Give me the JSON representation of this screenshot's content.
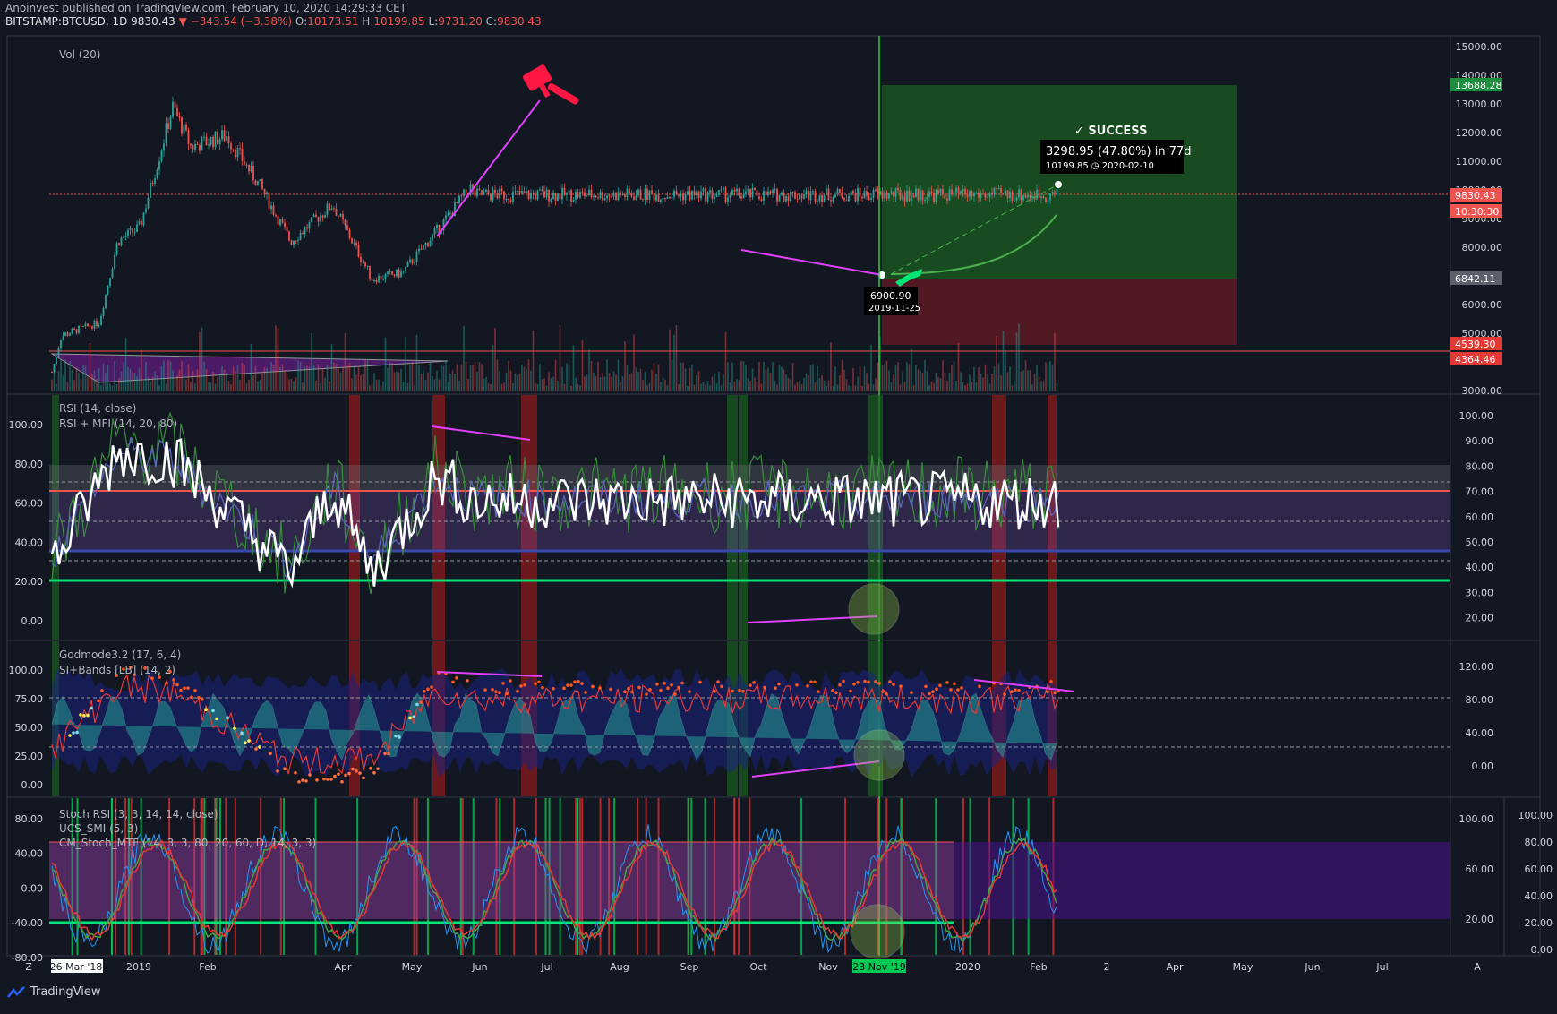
{
  "header": {
    "publisher_line": "Anoinvest published on TradingView.com, February 10, 2020 14:29:33 CET",
    "symbol": "BITSTAMP:BTCUSD, 1D",
    "last": "9830.43",
    "change": "−343.54 (−3.38%)",
    "o_label": "O:",
    "o_value": "10173.51",
    "h_label": "H:",
    "h_value": "10199.85",
    "l_label": "L:",
    "l_value": "9731.20",
    "c_label": "C:",
    "c_value": "9830.43"
  },
  "panes": {
    "price_title": "Vol (20)",
    "rsi_title1": "RSI (14, close)",
    "rsi_title2": "RSI + MFI (14, 20, 80)",
    "god_title1": "Godmode3.2 (17, 6, 4)",
    "god_title2": "SI+Bands [LB] (14, 2)",
    "stoch_title1": "Stoch RSI (3, 3, 14, 14, close)",
    "stoch_title2": "UCS_SMI (5, 3)",
    "stoch_title3": "CM_Stoch_MTF (14, 3, 3, 80, 20, 60, D, 14, 3, 3)"
  },
  "annotations": {
    "success": "✓ SUCCESS",
    "result_line1": "3298.95 (47.80%) in 77d",
    "result_line2": "10199.85 ◷ 2020-02-10",
    "low_price": "6900.90",
    "low_date": "2019-11-25"
  },
  "price_tags": {
    "target": "13688.28",
    "last": "9830.43",
    "countdown": "10:30:30",
    "entry": "6842.11",
    "stop1": "4539.30",
    "stop2": "4364.46"
  },
  "axes": {
    "price_ticks": [
      "15000.00",
      "14000.00",
      "13000.00",
      "12000.00",
      "11000.00",
      "10000.00",
      "9000.00",
      "8000.00",
      "7000.00",
      "6000.00",
      "5000.00",
      "4000.00",
      "3000.00"
    ],
    "rsi_left": [
      "100.00",
      "80.00",
      "60.00",
      "40.00",
      "20.00",
      "0.00"
    ],
    "rsi_right": [
      "100.00",
      "90.00",
      "80.00",
      "70.00",
      "60.00",
      "50.00",
      "40.00",
      "30.00",
      "20.00"
    ],
    "god_left": [
      "100.00",
      "75.00",
      "50.00",
      "25.00",
      "0.00"
    ],
    "god_right": [
      "120.00",
      "80.00",
      "40.00",
      "0.00"
    ],
    "stoch_left": [
      "80.00",
      "40.00",
      "0.00",
      "-40.00",
      "-80.00"
    ],
    "stoch_right1": [
      "100.00",
      "60.00",
      "20.00"
    ],
    "stoch_right2": [
      "100.00",
      "80.00",
      "60.00",
      "40.00",
      "20.00",
      "0.00"
    ],
    "time_labels": [
      "26 Mar '18",
      "2019",
      "Feb",
      "Apr",
      "May",
      "Jun",
      "Jul",
      "Aug",
      "Sep",
      "Oct",
      "Nov",
      "23 Nov '19",
      "2020",
      "Feb",
      "2",
      "Apr",
      "May",
      "Jun",
      "Jul"
    ],
    "corner_left": "Z",
    "corner_right": "A"
  },
  "colors": {
    "background": "#131722",
    "up": "#26a69a",
    "down": "#ef5350",
    "magenta": "#e040fb",
    "profit_zone": "#1b5e20",
    "loss_zone": "#5d1a24",
    "cursor_line": "#2ecc40"
  },
  "footer": {
    "brand": "TradingView"
  },
  "chart_data": [
    {
      "type": "line",
      "title": "BITSTAMP:BTCUSD, 1D",
      "ylim": [
        3000,
        15000
      ],
      "x": [
        "2019-03-26",
        "2019-04-02",
        "2019-05-01",
        "2019-05-15",
        "2019-06-01",
        "2019-06-26",
        "2019-07-10",
        "2019-08-06",
        "2019-09-01",
        "2019-09-24",
        "2019-10-26",
        "2019-11-25",
        "2019-12-18",
        "2020-01-14",
        "2020-02-09",
        "2020-02-10"
      ],
      "series": [
        {
          "values": [
            3950,
            4900,
            5350,
            8200,
            8700,
            12900,
            11500,
            11900,
            10100,
            8200,
            9500,
            6900,
            7100,
            8600,
            10150,
            9830
          ]
        }
      ],
      "annotations": [
        "6900.90 2019-11-25",
        "3298.95 (47.80%) in 77d"
      ]
    },
    {
      "type": "line",
      "title": "RSI (14, close)",
      "ylim": [
        0,
        100
      ],
      "x": [
        "2019-03-26",
        "2019-05-15",
        "2019-06-26",
        "2019-09-24",
        "2019-10-26",
        "2019-11-25",
        "2020-01-14",
        "2020-02-10"
      ],
      "series": [
        {
          "values": [
            20,
            94,
            90,
            15,
            70,
            15,
            78,
            62
          ]
        }
      ]
    },
    {
      "type": "line",
      "title": "Godmode3.2 (17, 6, 4)",
      "ylim": [
        0,
        100
      ],
      "x": [
        "2019-03-26",
        "2019-05-15",
        "2019-06-26",
        "2019-09-24",
        "2019-11-25",
        "2020-01-14",
        "2020-02-10"
      ],
      "series": [
        {
          "values": [
            20,
            98,
            92,
            5,
            8,
            95,
            83
          ]
        }
      ]
    },
    {
      "type": "line",
      "title": "Stoch RSI (3, 3, 14, 14, close)",
      "ylim": [
        -80,
        100
      ],
      "x": [
        "2019-03-26",
        "2019-11-25",
        "2020-02-10"
      ],
      "series": [
        {
          "values": [
            -45,
            -55,
            60
          ]
        }
      ]
    }
  ]
}
